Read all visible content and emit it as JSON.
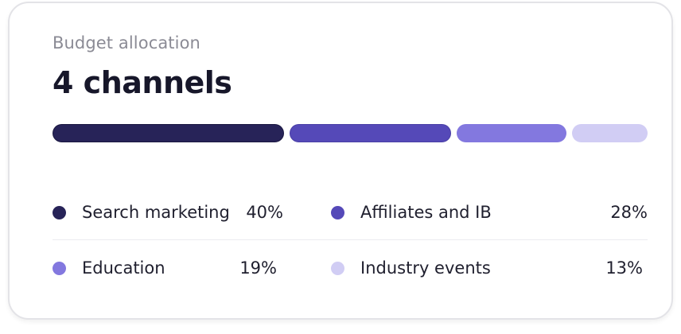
{
  "card": {
    "subtitle": "Budget allocation",
    "title": "4 channels"
  },
  "colors": {
    "search_marketing": "#272358",
    "affiliates_and_ib": "#5549b8",
    "education": "#8378df",
    "industry_events": "#d1cdf4"
  },
  "chart_data": {
    "type": "bar",
    "categories": [
      "Search marketing",
      "Affiliates and IB",
      "Education",
      "Industry events"
    ],
    "values": [
      40,
      28,
      19,
      13
    ],
    "value_labels": [
      "40%",
      "28%",
      "19%",
      "13%"
    ],
    "colors": [
      "#272358",
      "#5549b8",
      "#8378df",
      "#d1cdf4"
    ],
    "title": "",
    "xlabel": "",
    "ylabel": "",
    "stacked": true
  }
}
